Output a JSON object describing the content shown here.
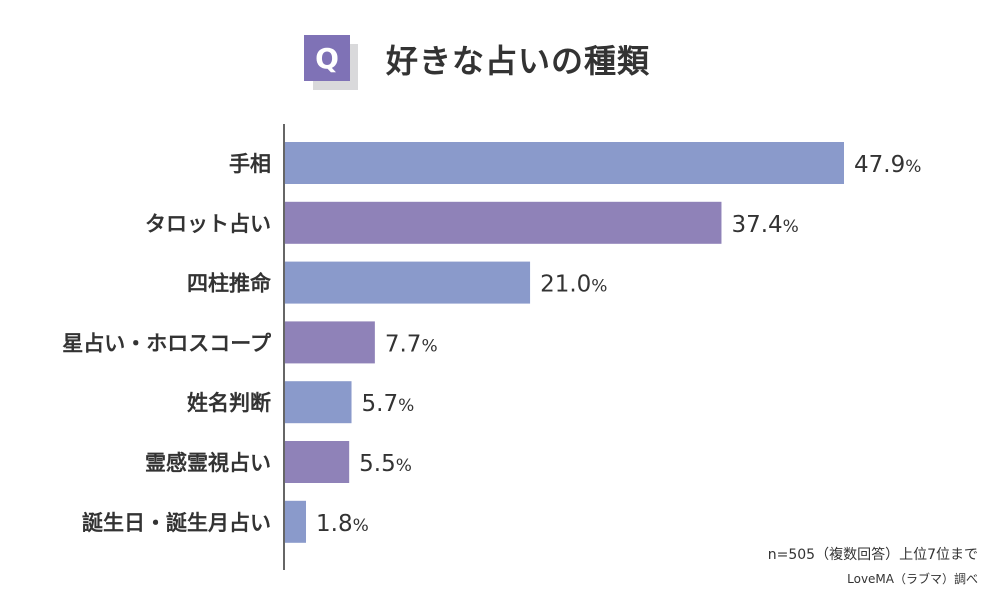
{
  "title": {
    "badge": "Q",
    "text": "好きな占いの種類"
  },
  "chart_data": {
    "type": "bar",
    "orientation": "horizontal",
    "title": "好きな占いの種類",
    "categories": [
      "手相",
      "タロット占い",
      "四柱推命",
      "星占い・ホロスコープ",
      "姓名判断",
      "霊感霊視占い",
      "誕生日・誕生月占い"
    ],
    "values": [
      47.9,
      37.4,
      21.0,
      7.7,
      5.7,
      5.5,
      1.8
    ],
    "value_labels": [
      "47.9",
      "37.4",
      "21.0",
      "7.7",
      "5.7",
      "5.5",
      "1.8"
    ],
    "unit": "%",
    "colors": [
      "#8a9acb",
      "#8f82b8"
    ],
    "xlim": [
      0,
      50
    ],
    "grid": false
  },
  "notes": {
    "sample": "n=505（複数回答）上位7位まで",
    "source": "LoveMA（ラブマ）調べ"
  }
}
